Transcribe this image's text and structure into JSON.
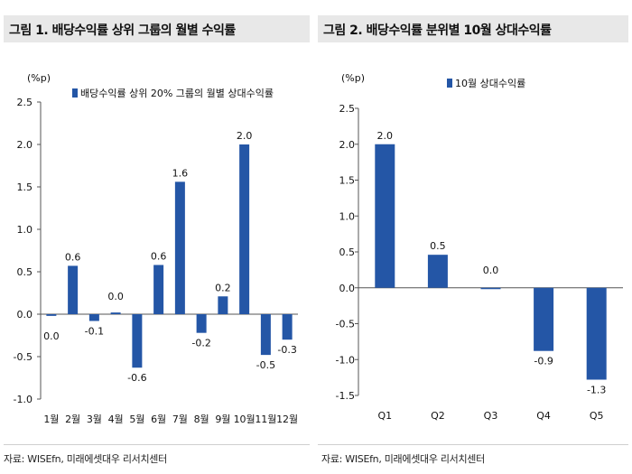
{
  "charts": [
    {
      "figure_title": "그림 1. 배당수익률 상위 그룹의 월별 수익률",
      "source": "자료: WISEfn, 미래에셋대우 리서치센터",
      "unit": "(%p)",
      "legend": "배당수익률 상위 20% 그룹의 월별 상대수익률",
      "color": "#2456a6"
    },
    {
      "figure_title": "그림 2. 배당수익률 분위별 10월 상대수익률",
      "source": "자료: WISEfn, 미래에셋대우 리서치센터",
      "unit": "(%p)",
      "legend": "10월 상대수익률",
      "color": "#2456a6"
    }
  ],
  "chart_data": [
    {
      "type": "bar",
      "title": "",
      "categories": [
        "1월",
        "2월",
        "3월",
        "4월",
        "5월",
        "6월",
        "7월",
        "8월",
        "9월",
        "10월",
        "11월",
        "12월"
      ],
      "values": [
        -0.02,
        0.57,
        -0.08,
        0.02,
        -0.63,
        0.58,
        1.56,
        -0.22,
        0.21,
        2.0,
        -0.48,
        -0.3
      ],
      "labels": [
        "0.0",
        "0.6",
        "-0.1",
        "0.0",
        "-0.6",
        "0.6",
        "1.6",
        "-0.2",
        "0.2",
        "2.0",
        "-0.5",
        "-0.3"
      ],
      "series": [
        {
          "name": "배당수익률 상위 20% 그룹의 월별 상대수익률"
        }
      ],
      "ylim": [
        -1.0,
        2.5
      ],
      "yticks": [
        "2.5",
        "2.0",
        "1.5",
        "1.0",
        "0.5",
        "0.0",
        "-0.5",
        "-1.0"
      ],
      "ylabel": "(%p)",
      "xlabel": "",
      "grid": false,
      "legend_position": "top"
    },
    {
      "type": "bar",
      "title": "",
      "categories": [
        "Q1",
        "Q2",
        "Q3",
        "Q4",
        "Q5"
      ],
      "values": [
        2.0,
        0.46,
        0.0,
        -0.88,
        -1.28
      ],
      "labels": [
        "2.0",
        "0.5",
        "0.0",
        "-0.9",
        "-1.3"
      ],
      "series": [
        {
          "name": "10월 상대수익률"
        }
      ],
      "ylim": [
        -1.5,
        2.5
      ],
      "yticks": [
        "2.5",
        "2.0",
        "1.5",
        "1.0",
        "0.5",
        "0.0",
        "-0.5",
        "-1.0",
        "-1.5"
      ],
      "ylabel": "(%p)",
      "xlabel": "",
      "grid": false,
      "legend_position": "top"
    }
  ]
}
